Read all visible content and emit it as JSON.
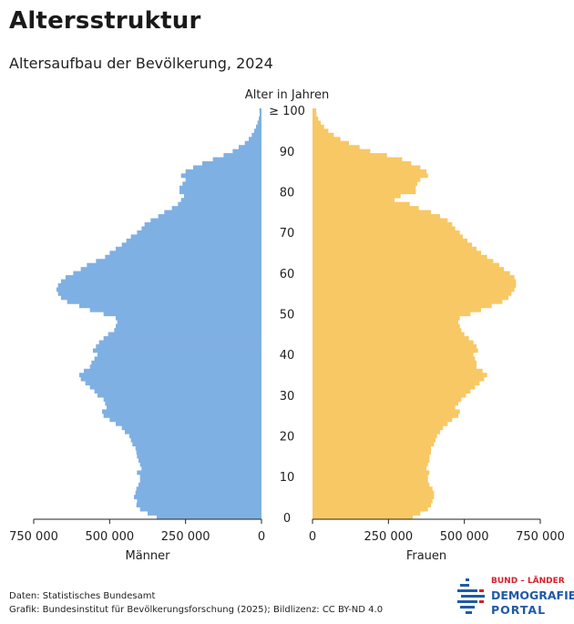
{
  "header": {
    "title": "Altersstruktur",
    "subtitle": "Altersaufbau der Bevölkerung, 2024"
  },
  "footer": {
    "source": "Daten: Statistisches Bundesamt",
    "credit": "Grafik: Bundesinstitut für Bevölkerungsforschung (2025); Bildlizenz: CC BY-ND 4.0"
  },
  "logo": {
    "line1": "BUND – LÄNDER",
    "line2": "DEMOGRAFIE",
    "line3": "PORTAL"
  },
  "colors": {
    "men": "#7fb0e3",
    "women": "#f8c865",
    "logo_red": "#d4202c",
    "logo_blue": "#1f5aa6"
  },
  "chart_data": {
    "type": "bar",
    "orientation": "horizontal-pyramid",
    "age_axis_label": "Alter in Jahren",
    "age_ticks": [
      "0",
      "10",
      "20",
      "30",
      "40",
      "50",
      "60",
      "70",
      "80",
      "90",
      "≥ 100"
    ],
    "x_ticks_men": [
      "750 000",
      "500 000",
      "250 000",
      "0"
    ],
    "x_ticks_women": [
      "0",
      "250 000",
      "500 000",
      "750 000"
    ],
    "xlim": [
      0,
      750000
    ],
    "ages": [
      0,
      1,
      2,
      3,
      4,
      5,
      6,
      7,
      8,
      9,
      10,
      11,
      12,
      13,
      14,
      15,
      16,
      17,
      18,
      19,
      20,
      21,
      22,
      23,
      24,
      25,
      26,
      27,
      28,
      29,
      30,
      31,
      32,
      33,
      34,
      35,
      36,
      37,
      38,
      39,
      40,
      41,
      42,
      43,
      44,
      45,
      46,
      47,
      48,
      49,
      50,
      51,
      52,
      53,
      54,
      55,
      56,
      57,
      58,
      59,
      60,
      61,
      62,
      63,
      64,
      65,
      66,
      67,
      68,
      69,
      70,
      71,
      72,
      73,
      74,
      75,
      76,
      77,
      78,
      79,
      80,
      81,
      82,
      83,
      84,
      85,
      86,
      87,
      88,
      89,
      90,
      91,
      92,
      93,
      94,
      95,
      96,
      97,
      98,
      99,
      100
    ],
    "series": [
      {
        "name": "Männer",
        "values": [
          345000,
          375000,
          400000,
          412000,
          410000,
          420000,
          415000,
          412000,
          405000,
          400000,
          400000,
          410000,
          395000,
          400000,
          405000,
          410000,
          412000,
          415000,
          425000,
          430000,
          435000,
          450000,
          460000,
          480000,
          500000,
          520000,
          525000,
          510000,
          515000,
          520000,
          540000,
          550000,
          565000,
          580000,
          595000,
          600000,
          585000,
          565000,
          560000,
          550000,
          540000,
          555000,
          545000,
          535000,
          520000,
          505000,
          485000,
          480000,
          475000,
          480000,
          520000,
          565000,
          600000,
          640000,
          660000,
          670000,
          675000,
          670000,
          660000,
          645000,
          620000,
          595000,
          575000,
          545000,
          515000,
          500000,
          480000,
          460000,
          445000,
          430000,
          410000,
          395000,
          385000,
          365000,
          340000,
          320000,
          295000,
          275000,
          265000,
          255000,
          270000,
          270000,
          260000,
          250000,
          265000,
          250000,
          225000,
          195000,
          160000,
          125000,
          95000,
          75000,
          55000,
          42000,
          32000,
          24000,
          18000,
          13000,
          9000,
          6000,
          7000
        ]
      },
      {
        "name": "Frauen",
        "values": [
          330000,
          355000,
          380000,
          390000,
          395000,
          400000,
          400000,
          395000,
          385000,
          380000,
          380000,
          385000,
          375000,
          380000,
          385000,
          385000,
          390000,
          390000,
          400000,
          405000,
          410000,
          420000,
          430000,
          445000,
          460000,
          480000,
          485000,
          470000,
          480000,
          490000,
          505000,
          520000,
          535000,
          550000,
          565000,
          575000,
          560000,
          540000,
          540000,
          535000,
          530000,
          545000,
          540000,
          530000,
          515000,
          500000,
          490000,
          485000,
          480000,
          485000,
          520000,
          555000,
          590000,
          625000,
          645000,
          655000,
          665000,
          670000,
          670000,
          665000,
          650000,
          630000,
          615000,
          595000,
          575000,
          555000,
          540000,
          525000,
          510000,
          495000,
          485000,
          470000,
          460000,
          445000,
          420000,
          390000,
          350000,
          320000,
          270000,
          290000,
          340000,
          340000,
          345000,
          355000,
          380000,
          375000,
          355000,
          325000,
          295000,
          245000,
          190000,
          155000,
          120000,
          92000,
          70000,
          52000,
          38000,
          27000,
          19000,
          13000,
          12000
        ]
      }
    ],
    "xlabel_men": "Männer",
    "xlabel_women": "Frauen"
  }
}
